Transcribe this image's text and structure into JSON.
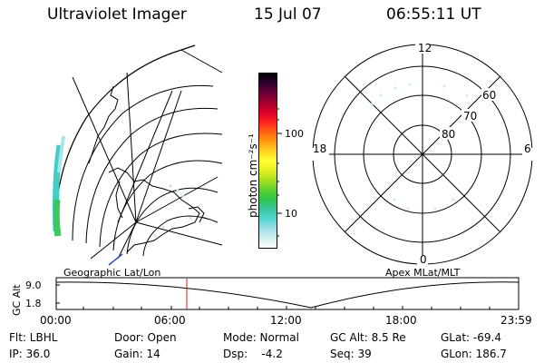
{
  "header": {
    "title": "Ultraviolet Imager",
    "date": "15 Jul 07",
    "time": "06:55:11 UT"
  },
  "colorbar": {
    "unit_label": "photon cm⁻²s⁻¹",
    "ticks": [
      "100",
      "10"
    ],
    "colors": [
      "#ffffff",
      "#d0eef0",
      "#9ee0e6",
      "#4fd6d0",
      "#38c6a0",
      "#2fc44a",
      "#5fd030",
      "#a8e020",
      "#e4f020",
      "#ffff30",
      "#ffd020",
      "#ff9a10",
      "#ff6010",
      "#ff2020",
      "#d8002a",
      "#a00030",
      "#6a0038",
      "#300030",
      "#000000"
    ]
  },
  "map_geo": {
    "label": "Geographic Lat/Lon"
  },
  "map_polar": {
    "label": "Apex MLat/MLT",
    "mlt_labels": {
      "top": "12",
      "bottom": "0",
      "left": "18",
      "right": "6"
    },
    "lat_labels": [
      "60",
      "70",
      "80"
    ]
  },
  "altitude_plot": {
    "ylabel": "GC Alt",
    "y_ticks": [
      "9.0",
      "1.8"
    ],
    "x_ticks": [
      "00:00",
      "06:00",
      "12:00",
      "18:00",
      "23:59"
    ]
  },
  "status": {
    "flt": "Flt: LBHL",
    "ip": "IP: 36.0",
    "door": "Door: Open",
    "gain": "Gain: 14",
    "mode": "Mode: Normal",
    "dsp": "Dsp:    -4.2",
    "gc_alt": "GC Alt: 8.5 Re",
    "seq": "Seq: 39",
    "glat": "GLat: -69.4",
    "glon": "GLon: 186.7"
  }
}
